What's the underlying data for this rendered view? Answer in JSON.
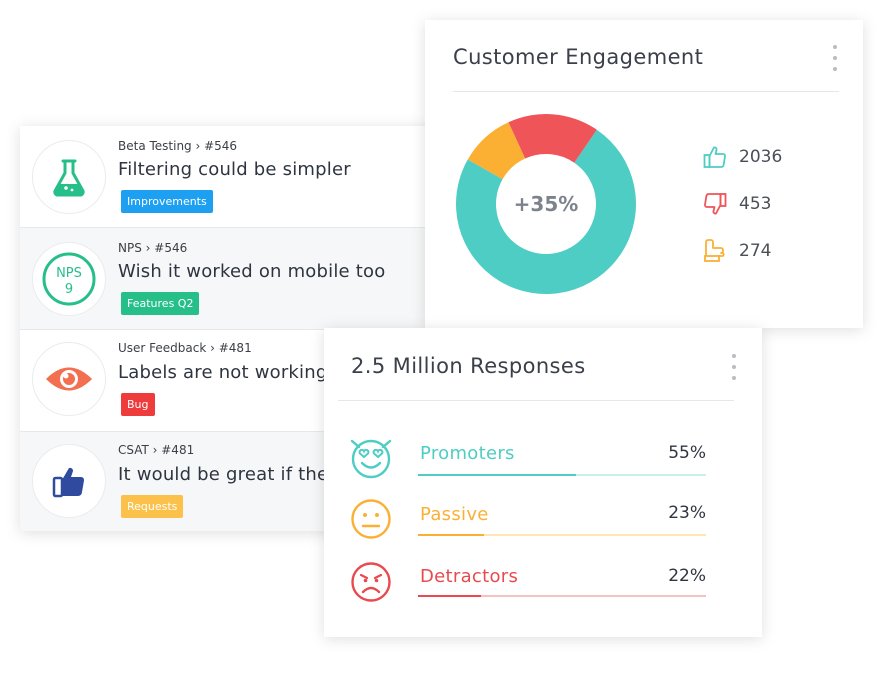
{
  "feedback_items": [
    {
      "breadcrumb": "Beta Testing › #546",
      "title": "Filtering could be simpler",
      "tag": "Improvements",
      "tag_color": "#1ea0f2",
      "icon": "flask-icon"
    },
    {
      "breadcrumb": "NPS › #546",
      "title": "Wish it worked on mobile too",
      "tag": "Features Q2",
      "tag_color": "#26bf8a",
      "icon": "nps-badge-icon",
      "icon_text_top": "NPS",
      "icon_text_bottom": "9"
    },
    {
      "breadcrumb": "User Feedback › #481",
      "title": "Labels are not working",
      "tag": "Bug",
      "tag_color": "#ee3b3b",
      "icon": "eye-icon"
    },
    {
      "breadcrumb": "CSAT › #481",
      "title": "It would be great if the",
      "tag": "Requests",
      "tag_color": "#fbc14a",
      "icon": "thumbs-up-icon"
    }
  ],
  "engagement": {
    "title": "Customer Engagement",
    "center_label": "+35%",
    "stats": [
      {
        "icon": "thumbs-up-icon",
        "value": "2036",
        "color": "#4ecdc4"
      },
      {
        "icon": "thumbs-down-icon",
        "value": "453",
        "color": "#ef5459"
      },
      {
        "icon": "thumb-sideways-icon",
        "value": "274",
        "color": "#fbb034"
      }
    ],
    "segments": [
      {
        "name": "positive",
        "value": 2036,
        "color": "#4ecdc4"
      },
      {
        "name": "neutral",
        "value": 274,
        "color": "#fbb034"
      },
      {
        "name": "negative",
        "value": 453,
        "color": "#ef5459"
      }
    ]
  },
  "responses": {
    "title": "2.5 Million Responses",
    "rows": [
      {
        "label": "Promoters",
        "percent": "55%",
        "fraction": 0.55,
        "color": "#4ecdc4",
        "track": "#c9efec",
        "icon": "heart-eyes-face-icon"
      },
      {
        "label": "Passive",
        "percent": "23%",
        "fraction": 0.23,
        "color": "#fbb034",
        "track": "#fde6b6",
        "icon": "neutral-face-icon"
      },
      {
        "label": "Detractors",
        "percent": "22%",
        "fraction": 0.22,
        "color": "#e84a4f",
        "track": "#f5c2c3",
        "icon": "sad-face-icon"
      }
    ]
  }
}
